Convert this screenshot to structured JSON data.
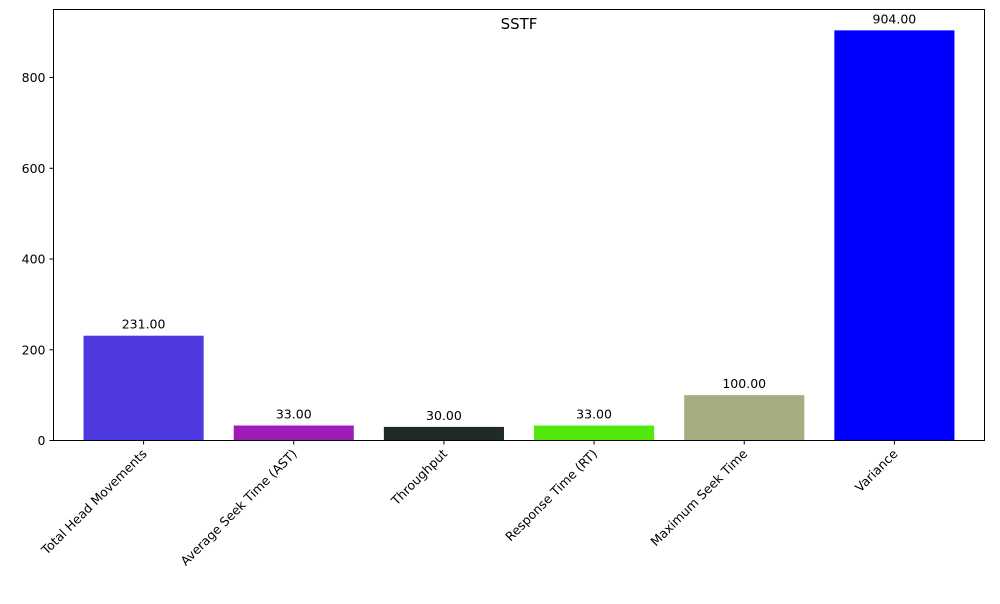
{
  "chart_data": {
    "type": "bar",
    "title": "SSTF",
    "xlabel": "",
    "ylabel": "",
    "categories": [
      "Total Head Movements",
      "Average Seek Time (AST)",
      "Throughput",
      "Response Time (RT)",
      "Maximum Seek Time",
      "Variance"
    ],
    "values": [
      231,
      33,
      30,
      33,
      100,
      904
    ],
    "value_labels": [
      "231.00",
      "33.00",
      "30.00",
      "33.00",
      "100.00",
      "904.00"
    ],
    "colors": [
      "#4f3ae0",
      "#a01cb8",
      "#1f2a2a",
      "#52e80c",
      "#a6ad80",
      "#0000ff"
    ],
    "ylim": [
      0,
      950
    ],
    "yticks": [
      0,
      200,
      400,
      600,
      800
    ],
    "grid": false,
    "legend": "none"
  }
}
